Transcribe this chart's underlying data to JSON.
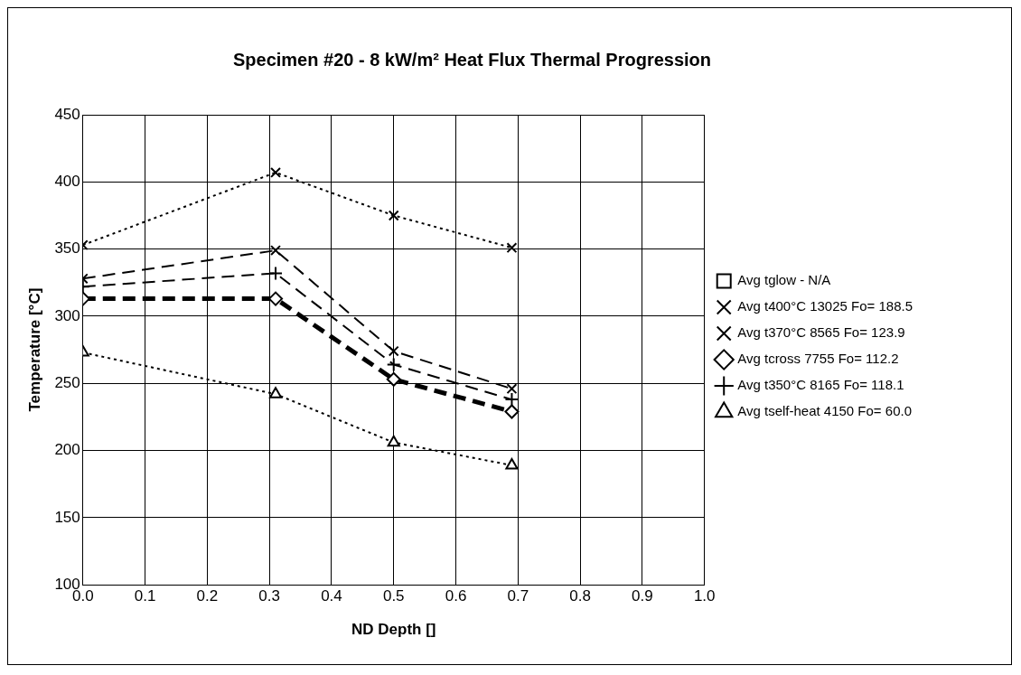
{
  "chart_data": {
    "type": "line",
    "title": "Specimen #20 - 8 kW/m² Heat Flux Thermal Progression",
    "xlabel": "ND Depth []",
    "ylabel": "Temperature [°C]",
    "x": [
      0,
      0.31,
      0.5,
      0.69
    ],
    "series": [
      {
        "name": "Avg tglow - N/A",
        "color": "#000000",
        "marker": "square",
        "line_style": "solid",
        "values": [
          null,
          null,
          null,
          null
        ]
      },
      {
        "name": "Avg t400°C 13025 Fo= 188.5",
        "color": "#000000",
        "marker": "cross",
        "line_style": "dotted",
        "values": [
          353,
          407,
          375,
          351
        ]
      },
      {
        "name": "Avg t370°C 8565 Fo= 123.9",
        "color": "#000000",
        "marker": "cross",
        "line_style": "dashed",
        "values": [
          328,
          349,
          274,
          246
        ]
      },
      {
        "name": "Avg tcross 7755 Fo= 112.2",
        "color": "#000000",
        "marker": "diamond",
        "line_style": "dashed",
        "values": [
          313,
          313,
          253,
          229
        ]
      },
      {
        "name": "Avg t350°C 8165 Fo= 118.1",
        "color": "#000000",
        "marker": "plus",
        "line_style": "dashed",
        "values": [
          322,
          332,
          264,
          238
        ]
      },
      {
        "name": "Avg tself-heat 4150 Fo= 60.0",
        "color": "#000000",
        "marker": "triangle",
        "line_style": "dotted",
        "values": [
          273,
          242,
          206,
          189
        ]
      }
    ],
    "xlim": [
      0,
      1
    ],
    "xticks": [
      {
        "value": 0,
        "label": "0.0"
      },
      {
        "value": 0.1,
        "label": "0.1"
      },
      {
        "value": 0.2,
        "label": "0.2"
      },
      {
        "value": 0.3,
        "label": "0.3"
      },
      {
        "value": 0.4,
        "label": "0.4"
      },
      {
        "value": 0.5,
        "label": "0.5"
      },
      {
        "value": 0.6,
        "label": "0.6"
      },
      {
        "value": 0.7,
        "label": "0.7"
      },
      {
        "value": 0.8,
        "label": "0.8"
      },
      {
        "value": 0.9,
        "label": "0.9"
      },
      {
        "value": 1,
        "label": "1.0"
      }
    ],
    "ylim": [
      100,
      450
    ],
    "yticks": [
      100,
      150,
      200,
      250,
      300,
      350,
      400,
      450
    ],
    "grid": true,
    "legend": "right"
  }
}
